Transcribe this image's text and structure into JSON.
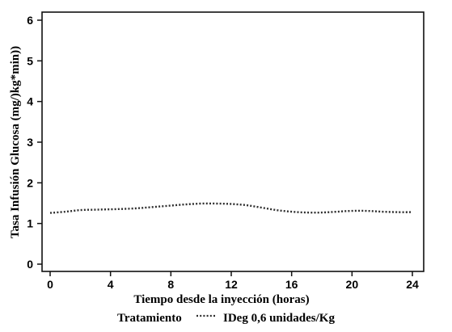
{
  "colors": {
    "background": "#ffffff",
    "frame": "#111111",
    "text": "#000000",
    "series_line": "#2e2e2e"
  },
  "chart_data": {
    "type": "line",
    "title": "",
    "xlabel": "Tiempo desde la inyección (horas)",
    "ylabel": "Tasa Infusión Glucosa (mg/)kg*min))",
    "xlim": [
      0,
      24
    ],
    "ylim": [
      0,
      6
    ],
    "xticks": [
      0,
      4,
      8,
      12,
      16,
      20,
      24
    ],
    "yticks": [
      0,
      1,
      2,
      3,
      4,
      5,
      6
    ],
    "grid": false,
    "legend": {
      "title": "Tratamiento",
      "placement": "bottom"
    },
    "series": [
      {
        "name": "IDeg 0,6 unidades/Kg",
        "line_style": "dotted",
        "x": [
          0,
          1,
          2,
          3,
          4,
          5,
          6,
          7,
          8,
          9,
          10,
          11,
          12,
          13,
          14,
          15,
          16,
          17,
          18,
          19,
          20,
          21,
          22,
          23,
          24
        ],
        "y": [
          1.26,
          1.29,
          1.33,
          1.34,
          1.35,
          1.36,
          1.38,
          1.41,
          1.44,
          1.47,
          1.49,
          1.49,
          1.48,
          1.45,
          1.39,
          1.33,
          1.29,
          1.27,
          1.27,
          1.29,
          1.31,
          1.31,
          1.29,
          1.28,
          1.28
        ]
      }
    ]
  }
}
